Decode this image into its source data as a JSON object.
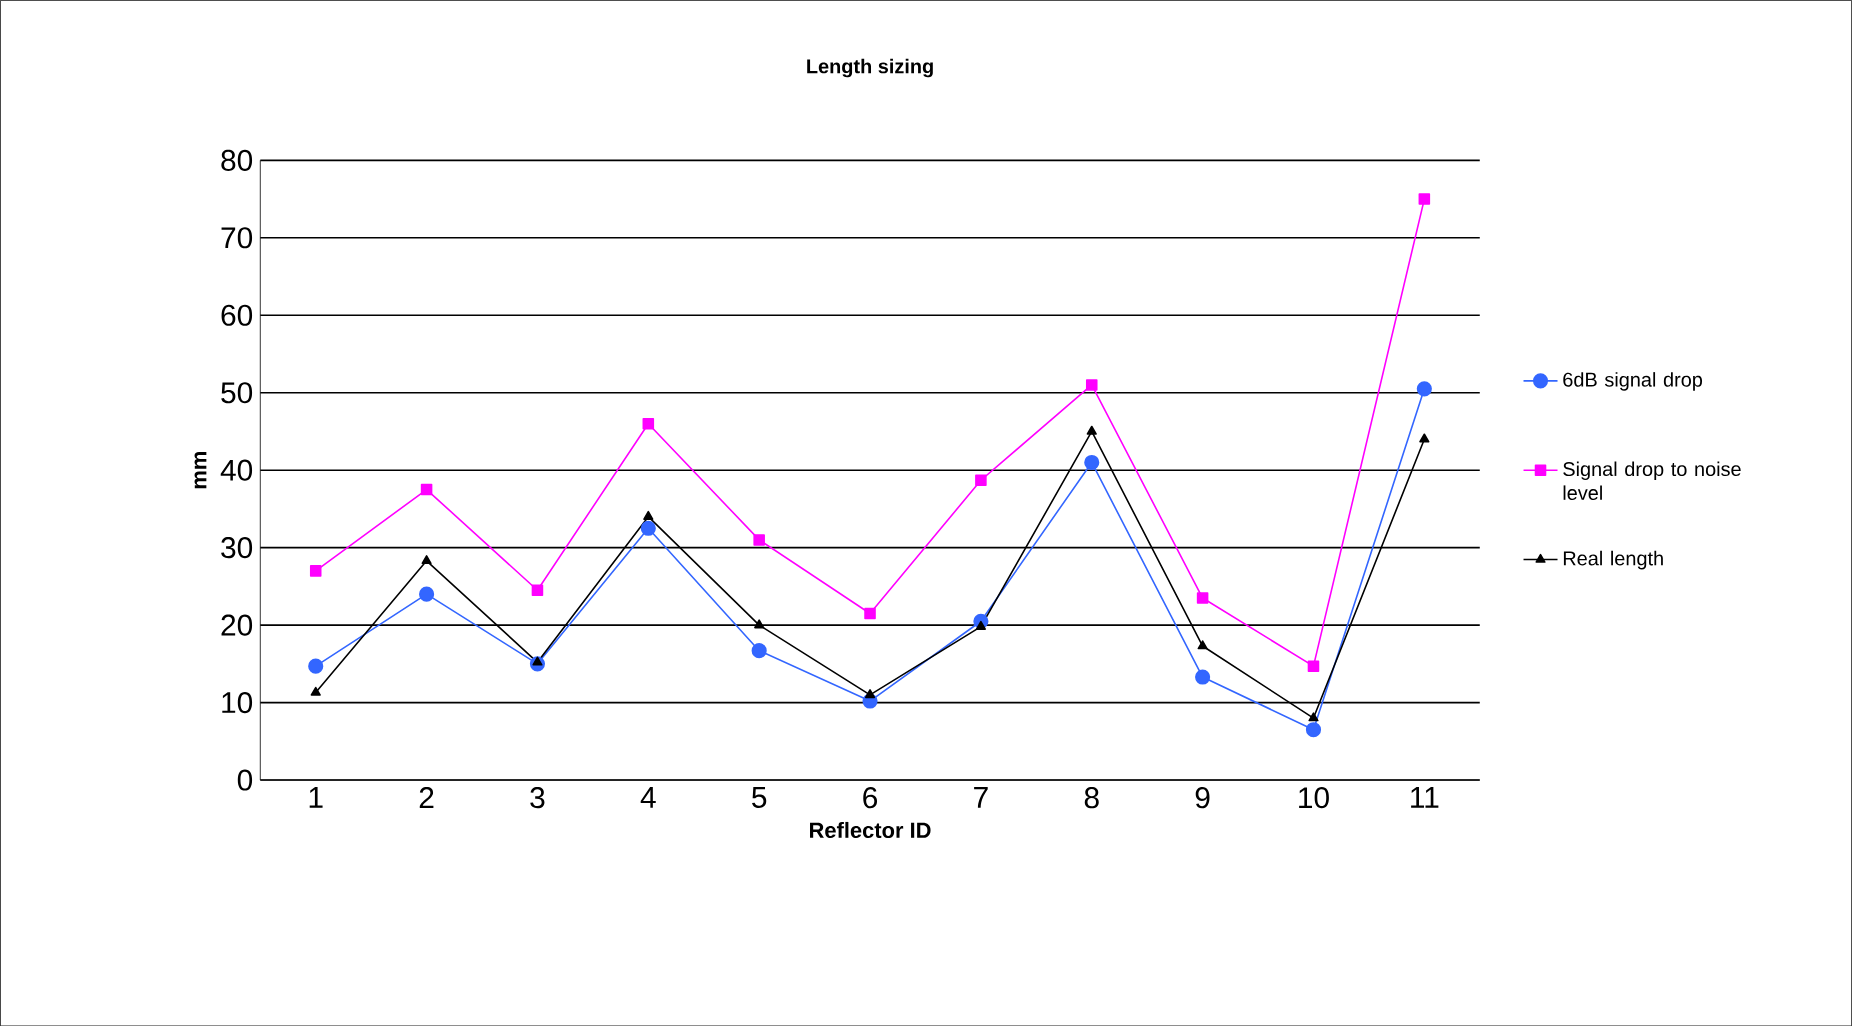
{
  "chart_data": {
    "type": "line",
    "title": "Length sizing",
    "xlabel": "Reflector ID",
    "ylabel": "mm",
    "categories": [
      "1",
      "2",
      "3",
      "4",
      "5",
      "6",
      "7",
      "8",
      "9",
      "10",
      "11"
    ],
    "series": [
      {
        "name": "6dB signal drop",
        "color": "#3366ff",
        "marker": "circle",
        "values": [
          14.7,
          24,
          15,
          32.5,
          16.7,
          10.2,
          20.5,
          41,
          13.3,
          6.5,
          50.5
        ]
      },
      {
        "name": "Signal drop to noise level",
        "color": "#ff00ff",
        "marker": "square",
        "values": [
          27,
          37.5,
          24.5,
          46,
          31,
          21.5,
          38.7,
          51,
          23.5,
          14.7,
          75
        ]
      },
      {
        "name": "Real length",
        "color": "#000000",
        "marker": "triangle",
        "values": [
          11.3,
          28.3,
          15.2,
          34,
          20,
          11,
          19.8,
          45,
          17.3,
          8,
          44
        ]
      }
    ],
    "ylim": [
      0,
      80
    ],
    "yticks": [
      0,
      10,
      20,
      30,
      40,
      50,
      60,
      70,
      80
    ],
    "grid": "y",
    "legend": "right"
  }
}
